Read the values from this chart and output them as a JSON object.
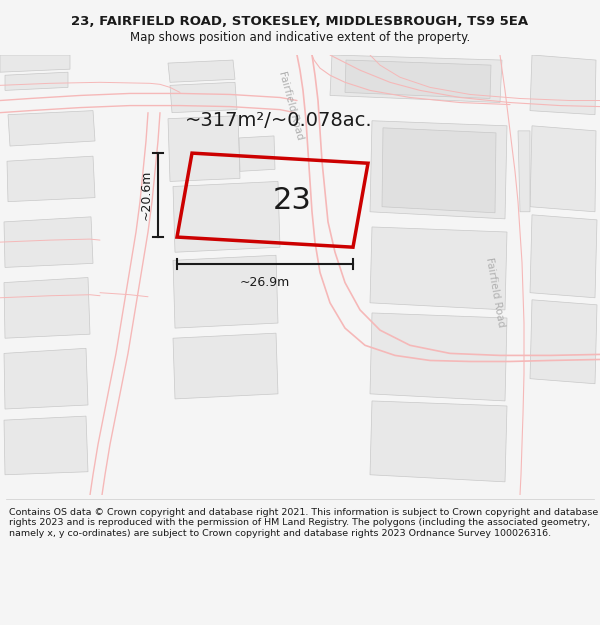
{
  "title": "23, FAIRFIELD ROAD, STOKESLEY, MIDDLESBROUGH, TS9 5EA",
  "subtitle": "Map shows position and indicative extent of the property.",
  "footer": "Contains OS data © Crown copyright and database right 2021. This information is subject to Crown copyright and database rights 2023 and is reproduced with the permission of HM Land Registry. The polygons (including the associated geometry, namely x, y co-ordinates) are subject to Crown copyright and database rights 2023 Ordnance Survey 100026316.",
  "area_label": "~317m²/~0.078ac.",
  "width_label": "~26.9m",
  "height_label": "~20.6m",
  "plot_number": "23",
  "background_color": "#f5f5f5",
  "map_bg": "#ffffff",
  "building_fill": "#e8e8e8",
  "building_stroke": "#c8c8c8",
  "road_stroke": "#f5b8b8",
  "plot_stroke": "#cc0000",
  "road_label_color": "#b0b0b0",
  "road_label_1": "Fairfield Road",
  "road_label_2": "Fairfield Road",
  "title_fontsize": 9.5,
  "subtitle_fontsize": 8.5
}
